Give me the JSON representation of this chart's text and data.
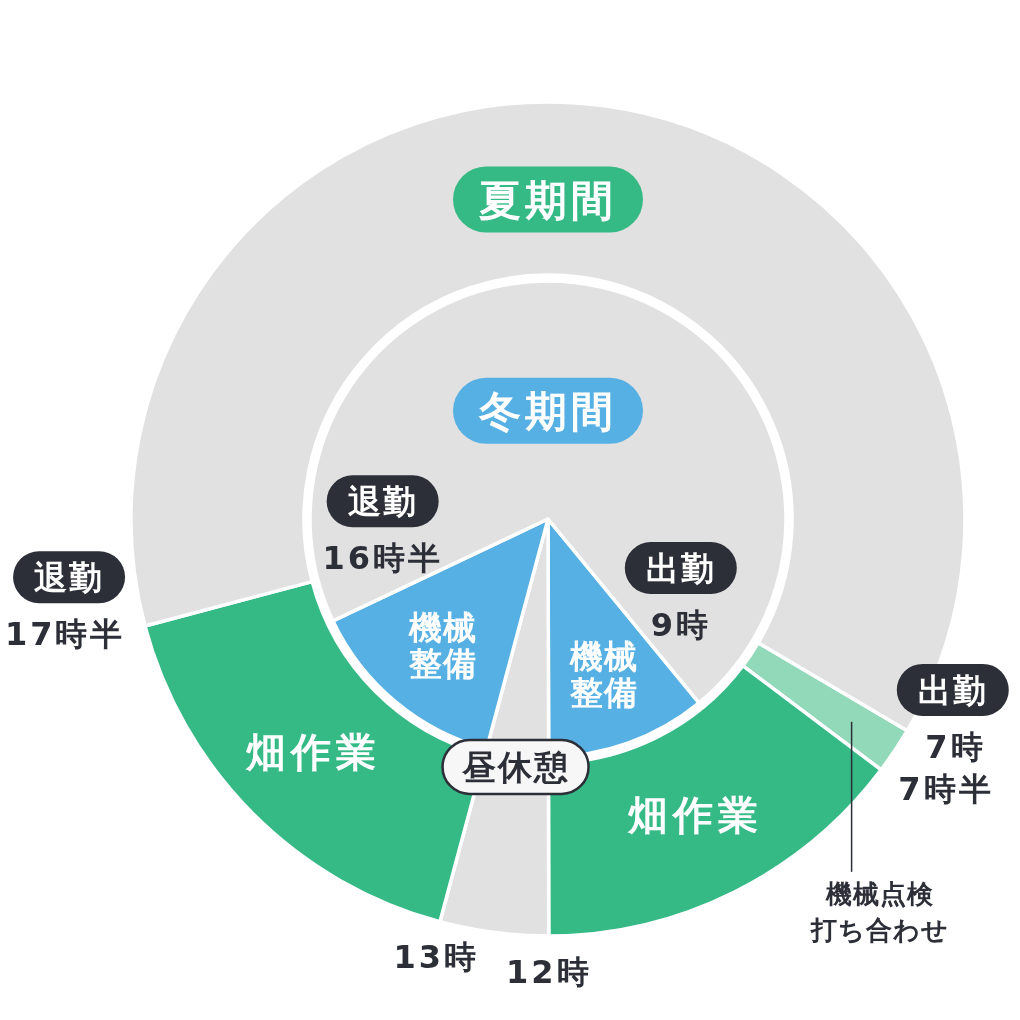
{
  "chart_data": [
    {
      "type": "donut",
      "title": "夏期間",
      "categories": [
        "機械点検打ち合わせ",
        "畑作業",
        "昼休憩",
        "畑作業",
        null
      ],
      "values": [
        1.8,
        14.7,
        4.2,
        16.7,
        62.6
      ],
      "colors": [
        "#92d9ba",
        "#35b985",
        "#e1e1e1",
        "#35b985",
        "#e1e1e1"
      ],
      "annotations": [
        "出勤",
        "7時",
        "7時半",
        "12時",
        "13時",
        "退勤",
        "17時半"
      ]
    },
    {
      "type": "pie",
      "title": "冬期間",
      "categories": [
        "機械整備",
        null,
        "機械整備",
        null
      ],
      "values": [
        10.9,
        4.2,
        13.8,
        71.1
      ],
      "colors": [
        "#56b0e3",
        "#e1e1e1",
        "#56b0e3",
        "#e1e1e1"
      ],
      "annotations": [
        "出勤",
        "9時",
        "退勤",
        "16時半"
      ]
    }
  ]
}
